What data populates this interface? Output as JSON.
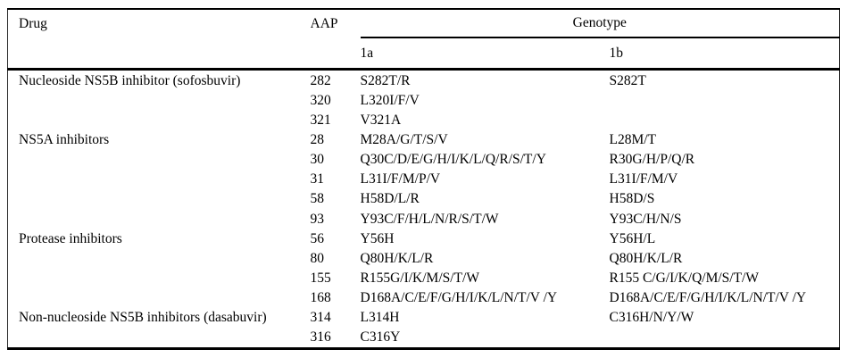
{
  "colors": {
    "background": "#ffffff",
    "text": "#000000",
    "rule": "#000000"
  },
  "table": {
    "header": {
      "drug": "Drug",
      "aap": "AAP",
      "genotype": "Genotype",
      "genotype_1a": "1a",
      "genotype_1b": "1b"
    },
    "rows": [
      {
        "drug": "Nucleoside NS5B inhibitor (sofosbuvir)",
        "aap": "282",
        "g1a": "S282T/R",
        "g1b": "S282T"
      },
      {
        "drug": "",
        "aap": "320",
        "g1a": "L320I/F/V",
        "g1b": ""
      },
      {
        "drug": "",
        "aap": "321",
        "g1a": "V321A",
        "g1b": ""
      },
      {
        "drug": "NS5A inhibitors",
        "aap": "28",
        "g1a": "M28A/G/T/S/V",
        "g1b": "L28M/T"
      },
      {
        "drug": "",
        "aap": "30",
        "g1a": "Q30C/D/E/G/H/I/K/L/Q/R/S/T/Y",
        "g1b": "R30G/H/P/Q/R"
      },
      {
        "drug": "",
        "aap": "31",
        "g1a": "L31I/F/M/P/V",
        "g1b": "L31I/F/M/V"
      },
      {
        "drug": "",
        "aap": "58",
        "g1a": "H58D/L/R",
        "g1b": "H58D/S"
      },
      {
        "drug": "",
        "aap": "93",
        "g1a": "Y93C/F/H/L/N/R/S/T/W",
        "g1b": "Y93C/H/N/S"
      },
      {
        "drug": "Protease inhibitors",
        "aap": "56",
        "g1a": "Y56H",
        "g1b": "Y56H/L"
      },
      {
        "drug": "",
        "aap": "80",
        "g1a": "Q80H/K/L/R",
        "g1b": "Q80H/K/L/R"
      },
      {
        "drug": "",
        "aap": "155",
        "g1a": "R155G/I/K/M/S/T/W",
        "g1b": "R155 C/G/I/K/Q/M/S/T/W"
      },
      {
        "drug": "",
        "aap": "168",
        "g1a": "D168A/C/E/F/G/H/I/K/L/N/T/V /Y",
        "g1b": "D168A/C/E/F/G/H/I/K/L/N/T/V /Y"
      },
      {
        "drug": "Non-nucleoside NS5B inhibitors (dasabuvir)",
        "aap": "314",
        "g1a": "L314H",
        "g1b": "C316H/N/Y/W"
      },
      {
        "drug": "",
        "aap": "316",
        "g1a": "C316Y",
        "g1b": ""
      }
    ]
  }
}
